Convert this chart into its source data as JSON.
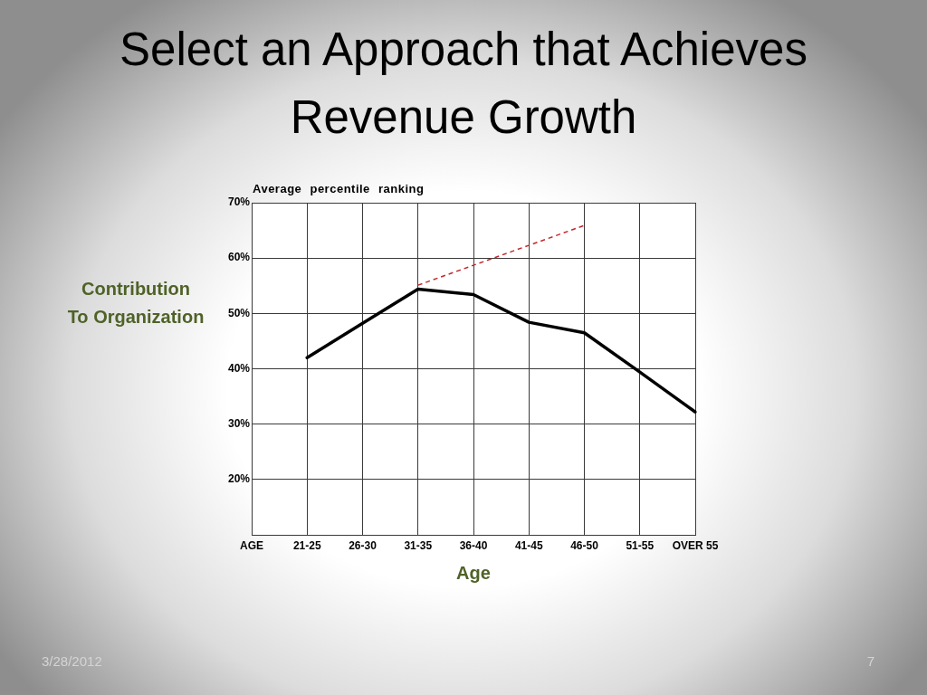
{
  "chart_data": {
    "type": "line",
    "title": "Select an Approach that Achieves Revenue Growth",
    "subtitle": "Average percentile ranking",
    "xlabel": "Age",
    "ylabel": "Contribution To Organization",
    "categories": [
      "AGE",
      "21-25",
      "26-30",
      "31-35",
      "36-40",
      "41-45",
      "46-50",
      "51-55",
      "OVER 55"
    ],
    "series": [
      {
        "color": "#000000",
        "values": [
          null,
          42.0,
          48.2,
          54.4,
          53.4,
          48.4,
          46.5,
          39.4,
          32.2
        ]
      },
      {
        "color": "#c0282d",
        "line_style": "dashed",
        "values": [
          null,
          null,
          null,
          55.1,
          58.7,
          62.3,
          65.9,
          null,
          null
        ]
      }
    ],
    "ylim": [
      10,
      70
    ],
    "yticks": [
      {
        "value": 20,
        "label": "20%"
      },
      {
        "value": 30,
        "label": "30%"
      },
      {
        "value": 40,
        "label": "40%"
      },
      {
        "value": 50,
        "label": "50%"
      },
      {
        "value": 60,
        "label": "60%"
      },
      {
        "value": 70,
        "label": "70%"
      }
    ],
    "grid": true,
    "marker": "none",
    "line_style": "solid",
    "annotations": [
      "3/28/2012",
      "7"
    ]
  }
}
